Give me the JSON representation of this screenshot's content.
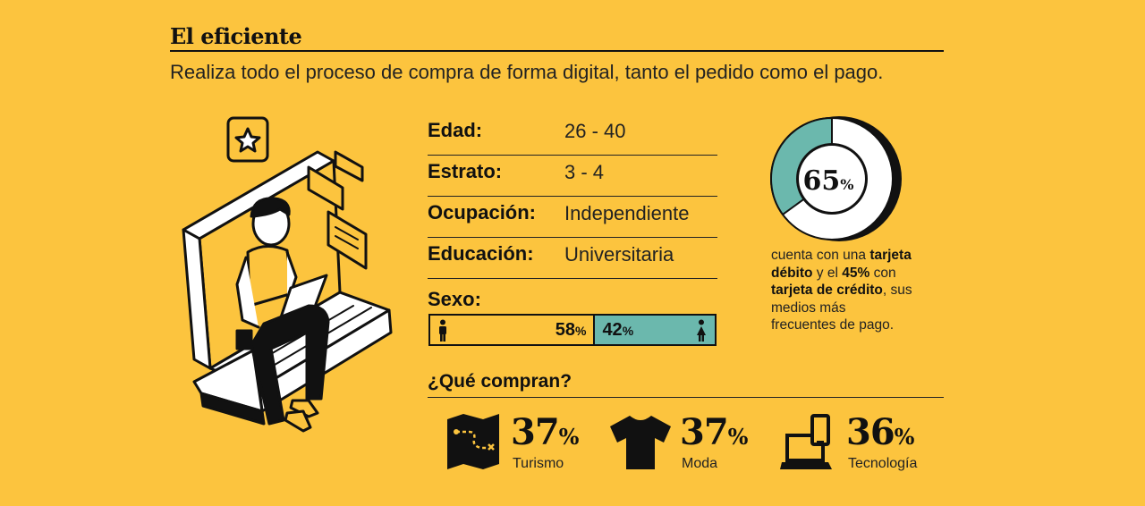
{
  "title": "El eficiente",
  "subtitle": "Realiza todo el proceso de compra de forma digital, tanto el pedido como el pago.",
  "profile": [
    {
      "label": "Edad:",
      "value": "26 - 40"
    },
    {
      "label": "Estrato:",
      "value": "3 - 4"
    },
    {
      "label": "Ocupación:",
      "value": "Independiente"
    },
    {
      "label": "Educación:",
      "value": "Universitaria"
    }
  ],
  "sexo": {
    "label": "Sexo:",
    "male_pct": "58",
    "female_pct": "42",
    "pct_sign": "%",
    "male_value": 58,
    "female_value": 42,
    "male_color": "#FCC43E",
    "female_color": "#6BB8AD"
  },
  "donut": {
    "value": 65,
    "value_text": "65",
    "pct_sign": "%",
    "fill_color": "#6BB8AD",
    "text_1": "cuenta con una ",
    "text_bold_1": "tarjeta débito",
    "text_2": " y el ",
    "text_bold_2": "45%",
    "text_3": " con ",
    "text_bold_3": "tarjeta de crédito",
    "text_4": ", sus medios más frecuentes de pago."
  },
  "purchases": {
    "title": "¿Qué compran?",
    "items": [
      {
        "value": "37",
        "pct_sign": "%",
        "name": "Turismo",
        "icon": "map-icon"
      },
      {
        "value": "37",
        "pct_sign": "%",
        "name": "Moda",
        "icon": "tshirt-icon"
      },
      {
        "value": "36",
        "pct_sign": "%",
        "name": "Tecnología",
        "icon": "laptop-phone-icon"
      }
    ]
  },
  "colors": {
    "background": "#FCC43E",
    "accent_teal": "#6BB8AD",
    "ink": "#111111"
  }
}
